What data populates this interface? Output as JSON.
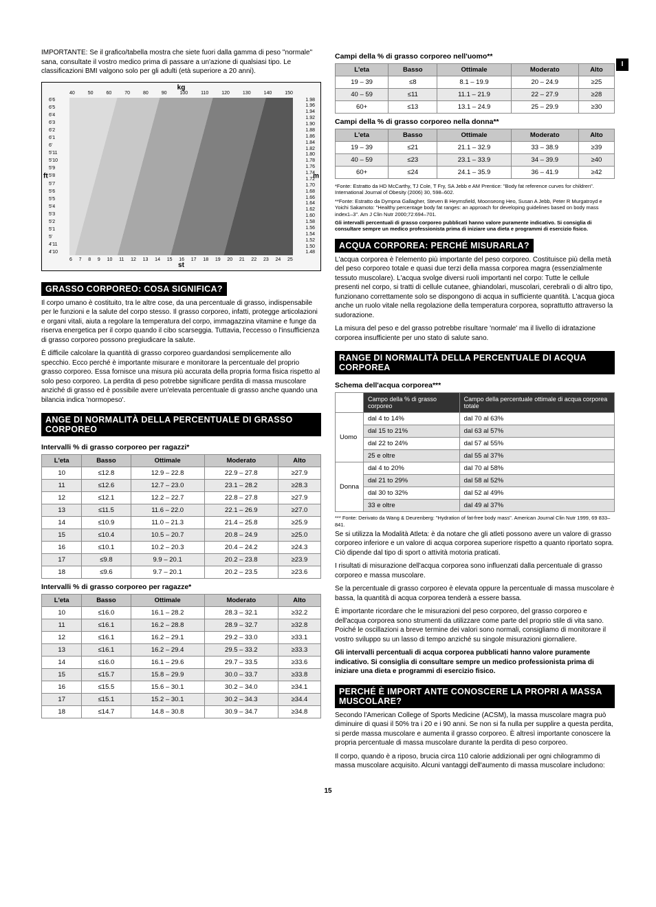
{
  "sideTab": "I",
  "importantNote": "IMPORTANTE: Se il grafico/tabella mostra che siete fuori dalla gamma di peso \"normale\" sana, consultate il vostro medico prima di passare a un'azione di qualsiasi tipo. Le classificazioni BMI valgono solo per gli adulti (età superiore a 20 anni).",
  "chart": {
    "kg": "kg",
    "st": "st",
    "ft": "ft",
    "m": "m",
    "topTicks": [
      "40",
      "50",
      "60",
      "70",
      "80",
      "90",
      "100",
      "110",
      "120",
      "130",
      "140",
      "150"
    ],
    "botTicks": [
      "6",
      "7",
      "8",
      "9",
      "10",
      "11",
      "12",
      "13",
      "14",
      "15",
      "16",
      "17",
      "18",
      "19",
      "20",
      "21",
      "22",
      "23",
      "24",
      "25"
    ],
    "leftTicks": [
      "6'6",
      "6'5",
      "6'4",
      "6'3",
      "6'2",
      "6'1",
      "6'",
      "5'11",
      "5'10",
      "5'9",
      "5'8",
      "5'7",
      "5'6",
      "5'5",
      "5'4",
      "5'3",
      "5'2",
      "5'1",
      "5'",
      "4'11",
      "4'10"
    ],
    "rightTicks": [
      "1.98",
      "1.96",
      "1.94",
      "1.92",
      "1.90",
      "1.88",
      "1.86",
      "1.84",
      "1.82",
      "1.80",
      "1.78",
      "1.76",
      "1.74",
      "1.72",
      "1.70",
      "1.68",
      "1.66",
      "1.64",
      "1.62",
      "1.60",
      "1.58",
      "1.56",
      "1.54",
      "1.52",
      "1.50",
      "1.48"
    ]
  },
  "sec1": {
    "title": "GRASSO CORPOREO: COSA SIGNIFICA?",
    "p1": "Il corpo umano è costituito, tra le altre cose, da una percentuale di grasso, indispensabile per le funzioni e la salute del corpo stesso. Il grasso corporeo, infatti, protegge articolazioni e organi vitali, aiuta a regolare la temperatura del corpo, immagazzina vitamine e funge da riserva energetica per il corpo quando il cibo scarseggia. Tuttavia, l'eccesso o l'insufficienza di grasso corporeo possono pregiudicare la salute.",
    "p2": "È difficile calcolare la quantità di grasso corporeo guardandosi semplicemente allo specchio. Ecco perché è importante misurare e monitorare la percentuale del proprio grasso corporeo. Essa fornisce una misura più accurata della propria forma fisica rispetto al solo peso corporeo. La perdita di peso potrebbe significare perdita di massa muscolare anziché di grasso ed è possibile avere un'elevata percentuale di grasso anche quando una bilancia indica 'normopeso'."
  },
  "sec2": {
    "title": "ANGE DI NORMALITÀ DELLA PERCENTUALE DI GRASSO CORPOREO",
    "boysTitle": "Intervalli % di grasso corporeo per ragazzi*",
    "girlsTitle": "Intervalli % di grasso corporeo per ragazze*",
    "headers": [
      "L'eta",
      "Basso",
      "Ottimale",
      "Moderato",
      "Alto"
    ],
    "boys": [
      [
        "10",
        "≤12.8",
        "12.9 – 22.8",
        "22.9 – 27.8",
        "≥27.9"
      ],
      [
        "11",
        "≤12.6",
        "12.7 – 23.0",
        "23.1 – 28.2",
        "≥28.3"
      ],
      [
        "12",
        "≤12.1",
        "12.2 – 22.7",
        "22.8 – 27.8",
        "≥27.9"
      ],
      [
        "13",
        "≤11.5",
        "11.6 – 22.0",
        "22.1 – 26.9",
        "≥27.0"
      ],
      [
        "14",
        "≤10.9",
        "11.0 – 21.3",
        "21.4 – 25.8",
        "≥25.9"
      ],
      [
        "15",
        "≤10.4",
        "10.5 – 20.7",
        "20.8 – 24.9",
        "≥25.0"
      ],
      [
        "16",
        "≤10.1",
        "10.2 – 20.3",
        "20.4 – 24.2",
        "≥24.3"
      ],
      [
        "17",
        "≤9.8",
        "9.9 – 20.1",
        "20.2 – 23.8",
        "≥23.9"
      ],
      [
        "18",
        "≤9.6",
        "9.7 – 20.1",
        "20.2 – 23.5",
        "≥23.6"
      ]
    ],
    "girls": [
      [
        "10",
        "≤16.0",
        "16.1 – 28.2",
        "28.3 – 32.1",
        "≥32.2"
      ],
      [
        "11",
        "≤16.1",
        "16.2 – 28.8",
        "28.9 – 32.7",
        "≥32.8"
      ],
      [
        "12",
        "≤16.1",
        "16.2 – 29.1",
        "29.2 – 33.0",
        "≥33.1"
      ],
      [
        "13",
        "≤16.1",
        "16.2 – 29.4",
        "29.5 – 33.2",
        "≥33.3"
      ],
      [
        "14",
        "≤16.0",
        "16.1 – 29.6",
        "29.7 – 33.5",
        "≥33.6"
      ],
      [
        "15",
        "≤15.7",
        "15.8 – 29.9",
        "30.0 – 33.7",
        "≥33.8"
      ],
      [
        "16",
        "≤15.5",
        "15.6 – 30.1",
        "30.2 – 34.0",
        "≥34.1"
      ],
      [
        "17",
        "≤15.1",
        "15.2 – 30.1",
        "30.2 – 34.3",
        "≥34.4"
      ],
      [
        "18",
        "≤14.7",
        "14.8 – 30.8",
        "30.9 – 34.7",
        "≥34.8"
      ]
    ]
  },
  "sec3": {
    "menTitle": "Campi della % di grasso corporeo nell'uomo**",
    "womenTitle": "Campi della % di grasso corporeo nella donna**",
    "headers": [
      "L'eta",
      "Basso",
      "Ottimale",
      "Moderato",
      "Alto"
    ],
    "men": [
      [
        "19 – 39",
        "≤8",
        "8.1 – 19.9",
        "20 – 24.9",
        "≥25"
      ],
      [
        "40 – 59",
        "≤11",
        "11.1 – 21.9",
        "22 – 27.9",
        "≥28"
      ],
      [
        "60+",
        "≤13",
        "13.1 – 24.9",
        "25 – 29.9",
        "≥30"
      ]
    ],
    "women": [
      [
        "19 – 39",
        "≤21",
        "21.1 – 32.9",
        "33 – 38.9",
        "≥39"
      ],
      [
        "40 – 59",
        "≤23",
        "23.1 – 33.9",
        "34 – 39.9",
        "≥40"
      ],
      [
        "60+",
        "≤24",
        "24.1 – 35.9",
        "36 – 41.9",
        "≥42"
      ]
    ],
    "note1": "*Fonte: Estratto da HD McCarthy, TJ Cole, T Fry, SA Jebb e AM Prentice: \"Body fat reference curves for children\". International Journal of Obesity (2006) 30, 598–602.",
    "note2": "**Fonte: Estratto da Dympna Gallagher, Steven B Heymsfield, Moonseong Heo, Susan A Jebb, Peter R Murgatroyd e Yoichi Sakamoto: \"Healthy percentage body fat ranges: an approach for developing guidelines based on body mass index1–3\". Am J Clin Nutr 2000;72:694–701.",
    "note3": "Gli intervalli percentuali di grasso corporeo pubblicati hanno valore puramente indicativo. Si consiglia di consultare sempre un medico professionista prima di iniziare una dieta e programmi di esercizio fisico."
  },
  "sec4": {
    "title": "ACQUA CORPOREA: PERCHÉ MISURARLA?",
    "p1": "L'acqua corporea è l'elemento più importante del peso corporeo. Costituisce più della metà del peso corporeo totale e quasi due terzi della massa corporea magra (essenzialmente tessuto muscolare). L'acqua svolge diversi ruoli importanti nel corpo: Tutte le cellule presenti nel corpo, si tratti di cellule cutanee, ghiandolari, muscolari, cerebrali o di altro tipo, funzionano correttamente solo se dispongono di acqua in sufficiente quantità. L'acqua gioca anche un ruolo vitale nella regolazione della temperatura corporea, soprattutto attraverso la sudorazione.",
    "p2": "La misura del peso e del grasso potrebbe risultare 'normale' ma il livello di idratazione corporea insufficiente per uno stato di salute sano."
  },
  "sec5": {
    "title": "RANGE DI NORMALITÀ DELLA PERCENTUALE DI ACQUA CORPOREA",
    "sub": "Schema dell'acqua corporea***",
    "h1": "Campo della % di grasso corporeo",
    "h2": "Campo della percentuale ottimale di acqua corporea totale",
    "rows": [
      {
        "label": "Uomo",
        "a": "dal 4 to 14%",
        "b": "dal 70 al 63%",
        "alt": false
      },
      {
        "label": "",
        "a": "dal 15 to 21%",
        "b": "dal 63 al 57%",
        "alt": true
      },
      {
        "label": "",
        "a": "dal 22 to 24%",
        "b": "dal 57 al 55%",
        "alt": false
      },
      {
        "label": "",
        "a": "25 e oltre",
        "b": "dal 55 al 37%",
        "alt": true
      },
      {
        "label": "Donna",
        "a": "dal 4 to 20%",
        "b": "dal 70 al 58%",
        "alt": false
      },
      {
        "label": "",
        "a": "dal 21 to 29%",
        "b": "dal 58 al 52%",
        "alt": true
      },
      {
        "label": "",
        "a": "dal 30 to 32%",
        "b": "dal 52 al 49%",
        "alt": false
      },
      {
        "label": "",
        "a": "33 e oltre",
        "b": "dal 49 al 37%",
        "alt": true
      }
    ],
    "note": "*** Fonte: Derivato da Wang & Deurenberg: \"Hydration of fat-free body mass\". American Journal Clin Nutr 1999, 69 833–841.",
    "p1": "Se si utilizza la Modalità Atleta: è da notare che gli atleti possono avere un valore di grasso corporeo inferiore e un valore di acqua corporea superiore rispetto a quanto riportato sopra. Ciò dipende dal tipo di sport o attività motoria praticati.",
    "p2": "I risultati di misurazione dell'acqua corporea sono influenzati dalla percentuale di grasso corporeo e massa muscolare.",
    "p3": "Se la percentuale di grasso corporeo è elevata oppure la percentuale di massa muscolare è bassa, la quantità di acqua corporea tenderà a essere bassa.",
    "p4": "È importante ricordare che le misurazioni del peso corporeo, del grasso corporeo e dell'acqua corporea sono strumenti da utilizzare come parte del proprio stile di vita sano. Poiché le oscillazioni a breve termine dei valori sono normali, consigliamo di monitorare il vostro sviluppo su un lasso di tempo anziché su singole misurazioni giornaliere.",
    "p5bold": "Gli intervalli percentuali di acqua corporea pubblicati hanno valore puramente indicativo. Si consiglia di consultare sempre un medico professionista prima di iniziare una dieta e programmi di esercizio fisico."
  },
  "sec6": {
    "title": "PERCHÉ È IMPORT ANTE CONOSCERE LA PROPRI A MASSA MUSCOLARE?",
    "p1": "Secondo l'American College of Sports Medicine (ACSM), la massa muscolare magra può diminuire di quasi il 50% tra i 20 e i 90 anni. Se non si fa nulla per supplire a questa perdita, si perde massa muscolare e aumenta il grasso corporeo. È altresì importante conoscere la propria percentuale di massa muscolare durante la perdita di peso corporeo.",
    "p2": "Il corpo, quando è a riposo, brucia circa 110 calorie addizionali per ogni chilogrammo di massa muscolare acquisito. Alcuni vantaggi dell'aumento di massa muscolare includono:"
  },
  "pageNum": "15"
}
